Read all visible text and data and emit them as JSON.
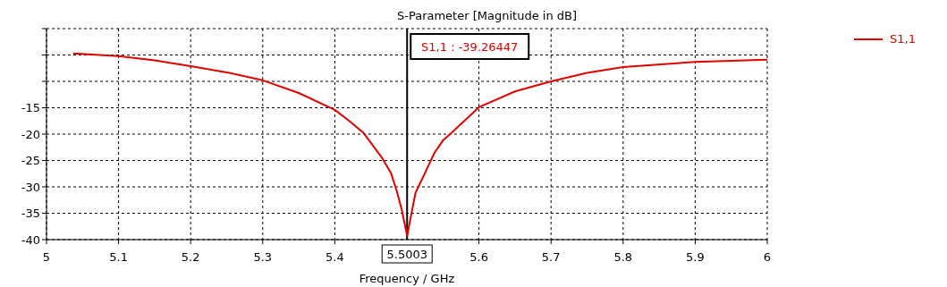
{
  "chart_data": {
    "type": "line",
    "title": "S-Parameter [Magnitude in dB]",
    "xlabel": "Frequency / GHz",
    "x": [
      5.037,
      5.1,
      5.15,
      5.2,
      5.25,
      5.3,
      5.35,
      5.4,
      5.42,
      5.44,
      5.466,
      5.478,
      5.486,
      5.493,
      5.5003,
      5.512,
      5.524,
      5.538,
      5.55,
      5.56,
      5.6,
      5.65,
      5.7,
      5.75,
      5.8,
      5.9,
      6.0
    ],
    "series": [
      {
        "name": "S1,1",
        "color": "#e00000",
        "values": [
          -4.7,
          -5.2,
          -6.0,
          -7.1,
          -8.3,
          -9.8,
          -12.2,
          -15.4,
          -17.5,
          -19.8,
          -24.6,
          -27.4,
          -30.8,
          -34.4,
          -39.26447,
          -31.1,
          -27.7,
          -23.6,
          -21.2,
          -20.0,
          -14.9,
          -11.9,
          -10.0,
          -8.4,
          -7.3,
          -6.3,
          -5.9
        ]
      }
    ],
    "xlim": [
      5,
      6
    ],
    "xticks": [
      5,
      5.1,
      5.2,
      5.3,
      5.4,
      5.6,
      5.7,
      5.8,
      5.9,
      6
    ],
    "ylim": [
      -40,
      0
    ],
    "yticks": [
      -40,
      -35,
      -30,
      -25,
      -20,
      -15,
      {
        "value": -10,
        "label": null
      },
      {
        "value": -5,
        "label": null
      },
      {
        "value": 0,
        "label": null
      }
    ],
    "grid": true,
    "legend": "top right",
    "marker": "none",
    "line_style": "solid",
    "ref_lines": [
      {
        "axis": "x",
        "value": 5.5003,
        "label": "5.5003",
        "color": "#000000"
      }
    ],
    "annotations": [
      "S1,1 : -39.26447"
    ]
  }
}
